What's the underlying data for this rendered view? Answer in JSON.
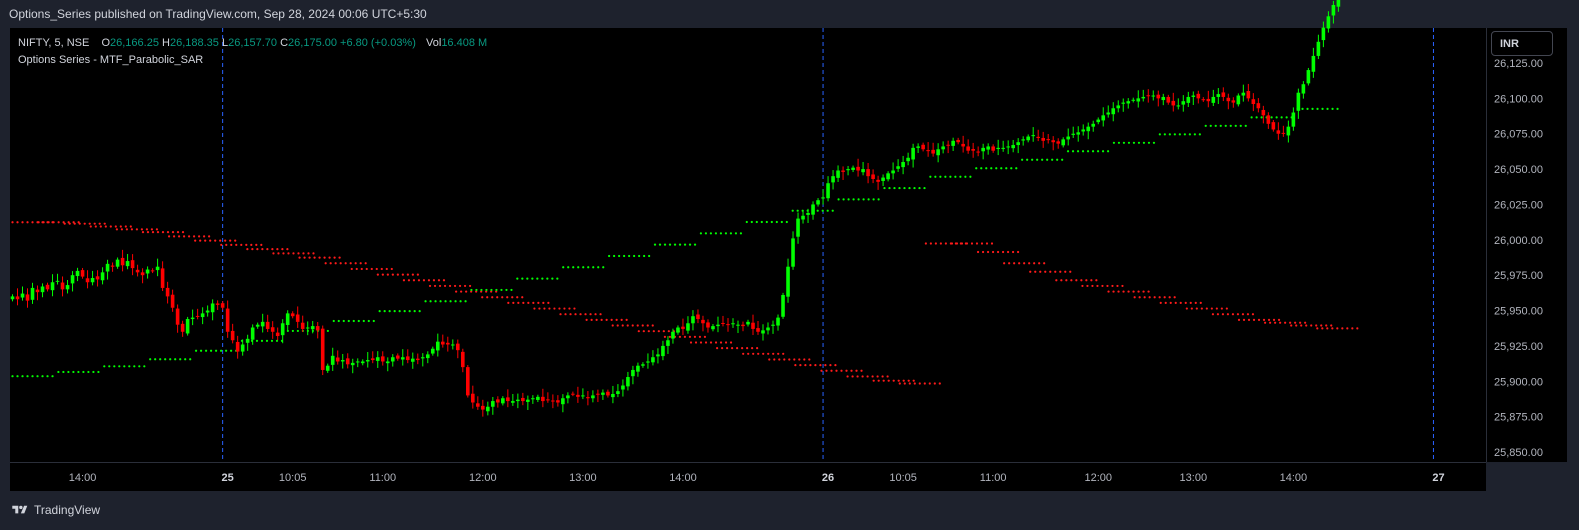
{
  "header": {
    "title": "Options_Series published on TradingView.com, Sep 28, 2024 00:06 UTC+5:30"
  },
  "legend": {
    "symbol": "NIFTY, 5, NSE",
    "o_label": "O",
    "o": "26,166.25",
    "h_label": "H",
    "h": "26,188.35",
    "l_label": "L",
    "l": "26,157.70",
    "c_label": "C",
    "c": "26,175.00",
    "change": "+6.80 (+0.03%)",
    "vol_label": "Vol",
    "vol": "16.408 M",
    "indicator": "Options Series - MTF_Parabolic_SAR"
  },
  "currency_button": "INR",
  "footer": {
    "brand": "TradingView"
  },
  "colors": {
    "up": "#00ff00",
    "down": "#ff0000",
    "sar_up": "#00ff00",
    "sar_down": "#ff1a1a",
    "session_line": "#2962ff",
    "background": "#000000",
    "frame": "#1e222d"
  },
  "chart_data": {
    "type": "candlestick",
    "ylim": [
      25840,
      26140
    ],
    "y_ticks": [
      {
        "value": 26125,
        "label": "26,125.00"
      },
      {
        "value": 26100,
        "label": "26,100.00"
      },
      {
        "value": 26075,
        "label": "26,075.00"
      },
      {
        "value": 26050,
        "label": "26,050.00"
      },
      {
        "value": 26025,
        "label": "26,025.00"
      },
      {
        "value": 26000,
        "label": "26,000.00"
      },
      {
        "value": 25975,
        "label": "25,975.00"
      },
      {
        "value": 25950,
        "label": "25,950.00"
      },
      {
        "value": 25925,
        "label": "25,925.00"
      },
      {
        "value": 25900,
        "label": "25,900.00"
      },
      {
        "value": 25875,
        "label": "25,875.00"
      },
      {
        "value": 25850,
        "label": "25,850.00"
      }
    ],
    "x_ticks": [
      {
        "bar": 14,
        "label": "14:00",
        "bold": false
      },
      {
        "bar": 43,
        "label": "25",
        "bold": true
      },
      {
        "bar": 56,
        "label": "10:05",
        "bold": false
      },
      {
        "bar": 74,
        "label": "11:00",
        "bold": false
      },
      {
        "bar": 94,
        "label": "12:00",
        "bold": false
      },
      {
        "bar": 114,
        "label": "13:00",
        "bold": false
      },
      {
        "bar": 134,
        "label": "14:00",
        "bold": false
      },
      {
        "bar": 163,
        "label": "26",
        "bold": true
      },
      {
        "bar": 178,
        "label": "10:05",
        "bold": false
      },
      {
        "bar": 196,
        "label": "11:00",
        "bold": false
      },
      {
        "bar": 217,
        "label": "12:00",
        "bold": false
      },
      {
        "bar": 236,
        "label": "13:00",
        "bold": false
      },
      {
        "bar": 256,
        "label": "14:00",
        "bold": false
      },
      {
        "bar": 285,
        "label": "27",
        "bold": true
      }
    ],
    "session_breaks": [
      42.5,
      162.5,
      284.5
    ],
    "bars_visible": 295,
    "candles_close": [
      25960,
      25958,
      25962,
      25957,
      25966,
      25963,
      25967,
      25965,
      25970,
      25971,
      25965,
      25968,
      25975,
      25978,
      25974,
      25970,
      25973,
      25972,
      25977,
      25983,
      25981,
      25986,
      25982,
      25985,
      25980,
      25977,
      25975,
      25979,
      25978,
      25981,
      25966,
      25960,
      25952,
      25940,
      25935,
      25944,
      25945,
      25946,
      25948,
      25950,
      25955,
      25954,
      25952,
      25935,
      25929,
      25921,
      25926,
      25930,
      25938,
      25940,
      25942,
      25937,
      25935,
      25932,
      25941,
      25948,
      25946,
      25942,
      25937,
      25938,
      25939,
      25936,
      25908,
      25911,
      25918,
      25914,
      25915,
      25912,
      25913,
      25914,
      25914,
      25915,
      25915,
      25917,
      25914,
      25914,
      25917,
      25916,
      25917,
      25915,
      25916,
      25915,
      25917,
      25919,
      25923,
      25928,
      25926,
      25926,
      25926,
      25922,
      25910,
      25890,
      25885,
      25882,
      25880,
      25882,
      25886,
      25885,
      25888,
      25886,
      25886,
      25887,
      25886,
      25887,
      25888,
      25889,
      25886,
      25887,
      25886,
      25885,
      25888,
      25890,
      25891,
      25889,
      25890,
      25888,
      25890,
      25891,
      25892,
      25890,
      25891,
      25893,
      25897,
      25903,
      25908,
      25911,
      25912,
      25914,
      25917,
      25919,
      25925,
      25929,
      25935,
      25938,
      25937,
      25941,
      25946,
      25944,
      25941,
      25938,
      25939,
      25940,
      25941,
      25940,
      25941,
      25940,
      25939,
      25942,
      25937,
      25935,
      25936,
      25938,
      25940,
      25945,
      25961,
      25981,
      26001,
      26015,
      26017,
      26019,
      26025,
      26028,
      26030,
      26040,
      26045,
      26049,
      26048,
      26050,
      26051,
      26049,
      26050,
      26045,
      26043,
      26041,
      26044,
      26047,
      26049,
      26052,
      26055,
      26058,
      26065,
      26066,
      26064,
      26063,
      26061,
      26064,
      26066,
      26067,
      26070,
      26069,
      26066,
      26063,
      26063,
      26062,
      26065,
      26066,
      26063,
      26065,
      26065,
      26066,
      26067,
      26069,
      26071,
      26073,
      26074,
      26072,
      26070,
      26071,
      26069,
      26068,
      26071,
      26073,
      26075,
      26076,
      26078,
      26080,
      26082,
      26085,
      26088,
      26090,
      26093,
      26095,
      26097,
      26098,
      26099,
      26100,
      26101,
      26102,
      26102,
      26100,
      26101,
      26097,
      26095,
      26095,
      26098,
      26101,
      26102,
      26100,
      26099,
      26098,
      26101,
      26103,
      26101,
      26098,
      26097,
      26102,
      26104,
      26100,
      26096,
      26093,
      26088,
      26082,
      26078,
      26075,
      26075,
      26080,
      26090,
      26104,
      26110,
      26120,
      26130,
      26140,
      26150,
      26158,
      26166,
      26175
    ],
    "sar_down_levels": [
      26011,
      26011,
      26010,
      26008,
      26006,
      26004,
      26001,
      25998,
      25995,
      25992,
      25989,
      25986,
      25982,
      25978,
      25974,
      25970,
      25966,
      25962,
      25958,
      25954,
      25950,
      25946,
      25942,
      25938,
      25934,
      25930,
      25926,
      25922,
      25918,
      25914,
      25910,
      25906,
      25902,
      25899,
      25897,
      25996,
      25996,
      25990,
      25982,
      25976,
      25970,
      25966,
      25962,
      25958,
      25954,
      25950,
      25946,
      25942,
      25940,
      25938,
      25936
    ],
    "sar_up_levels": [
      25905,
      25908,
      25912,
      25917,
      25923,
      25930,
      25937,
      25944,
      25951,
      25958,
      25966,
      25974,
      25982,
      25990,
      25998,
      26006,
      26014,
      26022,
      26030,
      26038,
      26046,
      26052,
      26058,
      26064,
      26070,
      26076,
      26082,
      26088,
      26094
    ]
  }
}
